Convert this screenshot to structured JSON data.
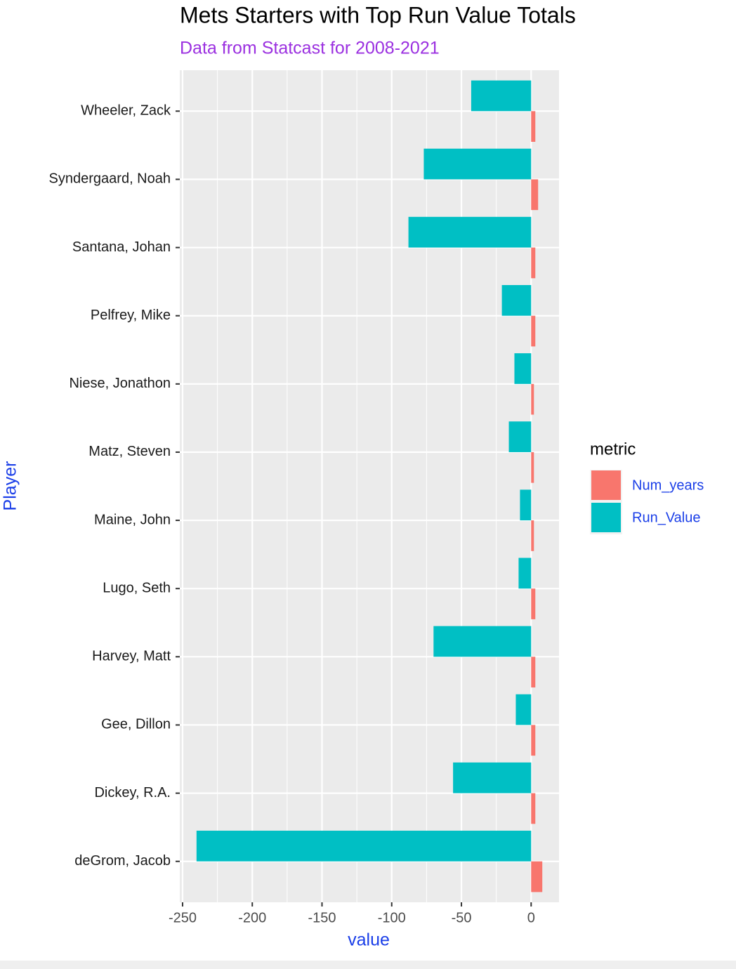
{
  "chart_data": {
    "type": "bar",
    "orientation": "horizontal",
    "title": "Mets Starters with Top Run Value Totals",
    "subtitle": "Data from Statcast for 2008-2021",
    "x_label": "value",
    "y_label": "Player",
    "legend_title": "metric",
    "legend_position": "right",
    "grid": true,
    "categories": [
      "Wheeler, Zack",
      "Syndergaard, Noah",
      "Santana, Johan",
      "Pelfrey, Mike",
      "Niese, Jonathon",
      "Matz, Steven",
      "Maine, John",
      "Lugo, Seth",
      "Harvey, Matt",
      "Gee, Dillon",
      "Dickey, R.A.",
      "deGrom, Jacob"
    ],
    "series": [
      {
        "name": "Num_years",
        "color": "#f8766d",
        "values": [
          3,
          5,
          3,
          3,
          2,
          2,
          2,
          3,
          3,
          3,
          3,
          8
        ]
      },
      {
        "name": "Run_Value",
        "color": "#00bfc4",
        "values": [
          -43,
          -77,
          -88,
          -21,
          -12,
          -16,
          -8,
          -9,
          -70,
          -11,
          -56,
          -240
        ]
      }
    ],
    "xlim": [
      -252,
      20
    ],
    "xticks": [
      -250,
      -200,
      -150,
      -100,
      -50,
      0
    ]
  }
}
